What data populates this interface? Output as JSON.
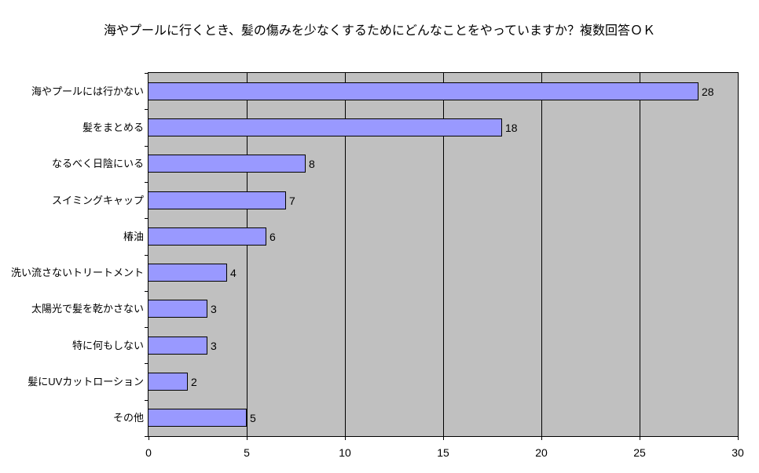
{
  "chart_data": {
    "type": "bar",
    "orientation": "horizontal",
    "title": "海やプールに行くとき、髪の傷みを少なくするためにどんなことをやっていますか？複数回答ＯＫ",
    "categories": [
      "海やプールには行かない",
      "髪をまとめる",
      "なるべく日陰にいる",
      "スイミングキャップ",
      "椿油",
      "洗い流さないトリートメント",
      "太陽光で髪を乾かさない",
      "特に何もしない",
      "髪にUVカットローション",
      "その他"
    ],
    "values": [
      28,
      18,
      8,
      7,
      6,
      4,
      3,
      3,
      2,
      5
    ],
    "xlabel": "",
    "ylabel": "",
    "xlim": [
      0,
      30
    ],
    "x_ticks": [
      0,
      5,
      10,
      15,
      20,
      25,
      30
    ],
    "grid": true,
    "legend": "none",
    "data_labels_shown": true,
    "colors": {
      "bar_fill": "#9999ff",
      "bar_border": "#000000",
      "plot_background": "#c0c0c0",
      "page_background": "#ffffff",
      "gridline": "#000000",
      "text": "#000000"
    }
  }
}
